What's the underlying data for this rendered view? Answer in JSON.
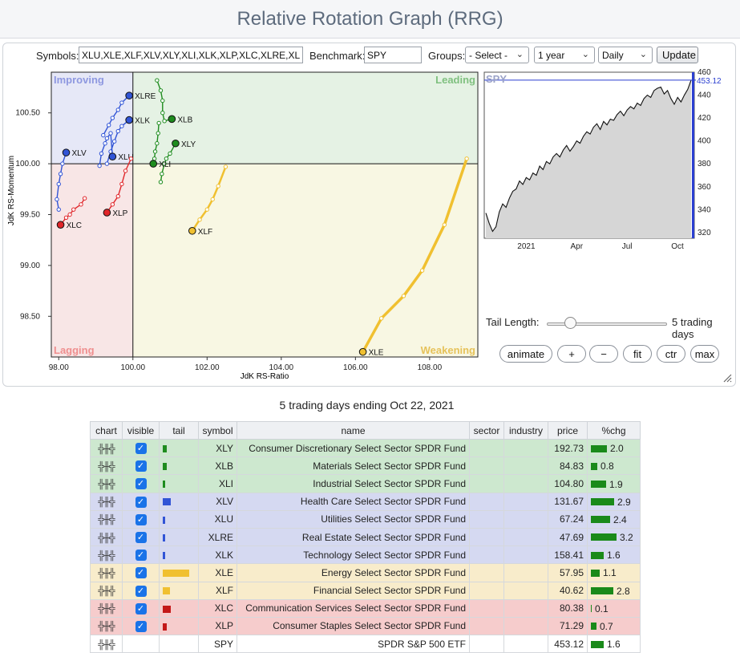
{
  "page_title": "Relative Rotation Graph (RRG)",
  "controls": {
    "symbols_label": "Symbols:",
    "symbols_value": "XLU,XLE,XLF,XLV,XLY,XLI,XLK,XLP,XLC,XLRE,XLB",
    "benchmark_label": "Benchmark:",
    "benchmark_value": "SPY",
    "groups_label": "Groups:",
    "groups_selected": "- Select -",
    "period_selected": "1 year",
    "frequency_selected": "Daily",
    "update_label": "Update"
  },
  "tail_control": {
    "label": "Tail Length:",
    "value_text": "5 trading days",
    "value_days": 5,
    "max_days": 52
  },
  "buttons": {
    "animate": "animate",
    "zoom_in": "+",
    "zoom_out": "−",
    "fit": "fit",
    "center": "ctr",
    "max": "max"
  },
  "chart_data": [
    {
      "type": "scatter",
      "title": "",
      "xlabel": "JdK RS-Ratio",
      "ylabel": "JdK RS-Momentum",
      "xlim": [
        97.8,
        109.3
      ],
      "ylim": [
        98.1,
        100.9
      ],
      "x_ticks": [
        "98.00",
        "100.00",
        "102.00",
        "104.00",
        "106.00",
        "108.00"
      ],
      "y_ticks": [
        "98.50",
        "99.00",
        "99.50",
        "100.00",
        "100.50"
      ],
      "center": [
        100,
        100
      ],
      "quadrants": {
        "top_left": "Improving",
        "top_right": "Leading",
        "bottom_left": "Lagging",
        "bottom_right": "Weakening"
      },
      "series": [
        {
          "name": "XLRE",
          "color": "#3154d6",
          "x": [
            99.2,
            99.35,
            99.45,
            99.6,
            99.7,
            99.9
          ],
          "y": [
            100.28,
            100.38,
            100.45,
            100.53,
            100.6,
            100.67
          ]
        },
        {
          "name": "XLK",
          "color": "#3154d6",
          "x": [
            99.3,
            99.4,
            99.5,
            99.6,
            99.7,
            99.9
          ],
          "y": [
            100.0,
            100.12,
            100.22,
            100.32,
            100.37,
            100.43
          ]
        },
        {
          "name": "XLV",
          "color": "#3154d6",
          "x": [
            98.0,
            97.95,
            98.0,
            98.05,
            98.1,
            98.2
          ],
          "y": [
            99.55,
            99.65,
            99.8,
            99.9,
            100.0,
            100.11
          ]
        },
        {
          "name": "XLU",
          "color": "#3154d6",
          "x": [
            99.1,
            99.15,
            99.25,
            99.3,
            99.4,
            99.45
          ],
          "y": [
            99.98,
            100.1,
            100.2,
            100.25,
            100.3,
            100.07
          ]
        },
        {
          "name": "XLB",
          "color": "#1e8c1e",
          "x": [
            100.65,
            100.75,
            100.8,
            100.8,
            100.85,
            101.05
          ],
          "y": [
            100.82,
            100.72,
            100.62,
            100.5,
            100.42,
            100.44
          ]
        },
        {
          "name": "XLY",
          "color": "#1e8c1e",
          "x": [
            100.75,
            100.78,
            100.85,
            100.9,
            101.0,
            101.15
          ],
          "y": [
            99.82,
            99.9,
            100.0,
            100.05,
            100.1,
            100.2
          ]
        },
        {
          "name": "XLI",
          "color": "#1e8c1e",
          "x": [
            100.7,
            100.68,
            100.65,
            100.6,
            100.58,
            100.55
          ],
          "y": [
            100.4,
            100.3,
            100.2,
            100.12,
            100.05,
            100.0
          ]
        },
        {
          "name": "XLF",
          "color": "#f0c030",
          "x": [
            102.5,
            102.3,
            102.15,
            102.0,
            101.8,
            101.6
          ],
          "y": [
            99.97,
            99.78,
            99.65,
            99.55,
            99.45,
            99.34
          ]
        },
        {
          "name": "XLE",
          "color": "#f0c030",
          "x": [
            109.0,
            108.4,
            107.8,
            107.3,
            106.7,
            106.2
          ],
          "y": [
            100.05,
            99.4,
            98.95,
            98.7,
            98.48,
            98.15
          ]
        },
        {
          "name": "XLP",
          "color": "#e0262a",
          "x": [
            99.95,
            99.8,
            99.7,
            99.6,
            99.45,
            99.3
          ],
          "y": [
            100.05,
            99.93,
            99.8,
            99.68,
            99.6,
            99.52
          ]
        },
        {
          "name": "XLC",
          "color": "#e0262a",
          "x": [
            98.7,
            98.6,
            98.4,
            98.3,
            98.2,
            98.05
          ],
          "y": [
            99.66,
            99.6,
            99.55,
            99.5,
            99.47,
            99.4
          ]
        }
      ]
    },
    {
      "type": "line",
      "title": "SPY",
      "x_ticks": [
        "2021",
        "Apr",
        "Jul",
        "Oct"
      ],
      "x_tick_positions": [
        0.2,
        0.44,
        0.68,
        0.92
      ],
      "y_ticks": [
        "320",
        "340",
        "360",
        "380",
        "400",
        "420",
        "440",
        "460"
      ],
      "ylim": [
        315,
        460
      ],
      "last_value": "453.12",
      "values": [
        337,
        328,
        321,
        325,
        338,
        345,
        342,
        350,
        356,
        358,
        365,
        362,
        368,
        366,
        372,
        370,
        378,
        375,
        382,
        380,
        386,
        389,
        386,
        392,
        396,
        391,
        395,
        400,
        398,
        404,
        408,
        406,
        412,
        415,
        410,
        417,
        414,
        419,
        418,
        423,
        426,
        422,
        427,
        430,
        428,
        433,
        431,
        437,
        440,
        438,
        444,
        446,
        447,
        441,
        444,
        437,
        432,
        438,
        434,
        440,
        445,
        453
      ]
    }
  ],
  "table": {
    "caption": "5 trading days ending Oct 22, 2021",
    "headers": [
      "chart",
      "visible",
      "tail",
      "symbol",
      "name",
      "sector",
      "industry",
      "price",
      "%chg"
    ],
    "rows": [
      {
        "symbol": "XLY",
        "name": "Consumer Discretionary Select Sector SPDR Fund",
        "price": "192.73",
        "chg": "2.0",
        "tail_color": "#1e8c1e",
        "tail_len": 5,
        "row_bg": "#cde8cf",
        "visible": true
      },
      {
        "symbol": "XLB",
        "name": "Materials Select Sector SPDR Fund",
        "price": "84.83",
        "chg": "0.8",
        "tail_color": "#1e8c1e",
        "tail_len": 5,
        "row_bg": "#cde8cf",
        "visible": true
      },
      {
        "symbol": "XLI",
        "name": "Industrial Select Sector SPDR Fund",
        "price": "104.80",
        "chg": "1.9",
        "tail_color": "#1e8c1e",
        "tail_len": 3,
        "row_bg": "#cde8cf",
        "visible": true
      },
      {
        "symbol": "XLV",
        "name": "Health Care Select Sector SPDR Fund",
        "price": "131.67",
        "chg": "2.9",
        "tail_color": "#3154d6",
        "tail_len": 10,
        "row_bg": "#d5d9f1",
        "visible": true
      },
      {
        "symbol": "XLU",
        "name": "Utilities Select Sector SPDR Fund",
        "price": "67.24",
        "chg": "2.4",
        "tail_color": "#3154d6",
        "tail_len": 3,
        "row_bg": "#d5d9f1",
        "visible": true
      },
      {
        "symbol": "XLRE",
        "name": "Real Estate Select Sector SPDR Fund",
        "price": "47.69",
        "chg": "3.2",
        "tail_color": "#3154d6",
        "tail_len": 3,
        "row_bg": "#d5d9f1",
        "visible": true
      },
      {
        "symbol": "XLK",
        "name": "Technology Select Sector SPDR Fund",
        "price": "158.41",
        "chg": "1.6",
        "tail_color": "#3154d6",
        "tail_len": 3,
        "row_bg": "#d5d9f1",
        "visible": true
      },
      {
        "symbol": "XLE",
        "name": "Energy Select Sector SPDR Fund",
        "price": "57.95",
        "chg": "1.1",
        "tail_color": "#f0c030",
        "tail_len": 33,
        "row_bg": "#f8eccb",
        "visible": true
      },
      {
        "symbol": "XLF",
        "name": "Financial Select Sector SPDR Fund",
        "price": "40.62",
        "chg": "2.8",
        "tail_color": "#f0c030",
        "tail_len": 9,
        "row_bg": "#f8eccb",
        "visible": true
      },
      {
        "symbol": "XLC",
        "name": "Communication Services Select Sector SPDR Fund",
        "price": "80.38",
        "chg": "0.1",
        "tail_color": "#c41818",
        "tail_len": 10,
        "row_bg": "#f6cccc",
        "visible": true
      },
      {
        "symbol": "XLP",
        "name": "Consumer Staples Select Sector SPDR Fund",
        "price": "71.29",
        "chg": "0.7",
        "tail_color": "#c41818",
        "tail_len": 5,
        "row_bg": "#f6cccc",
        "visible": true
      },
      {
        "symbol": "SPY",
        "name": "SPDR S&P 500 ETF",
        "price": "453.12",
        "chg": "1.6",
        "tail_color": "",
        "tail_len": 0,
        "row_bg": "#ffffff",
        "visible": false
      }
    ]
  }
}
